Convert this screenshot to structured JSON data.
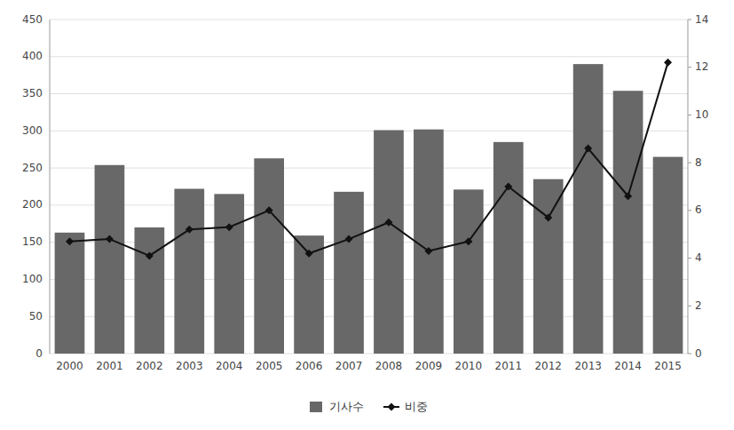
{
  "chart_data": {
    "type": "bar",
    "categories": [
      "2000",
      "2001",
      "2002",
      "2003",
      "2004",
      "2005",
      "2006",
      "2007",
      "2008",
      "2009",
      "2010",
      "2011",
      "2012",
      "2013",
      "2014",
      "2015"
    ],
    "series": [
      {
        "name": "기사수",
        "type": "bar",
        "color": "#686868",
        "values": [
          163,
          254,
          170,
          222,
          215,
          263,
          159,
          218,
          301,
          302,
          221,
          285,
          235,
          390,
          354,
          265
        ]
      },
      {
        "name": "비중",
        "type": "line",
        "color": "#111111",
        "marker": "diamond",
        "axis": "y2",
        "values": [
          4.7,
          4.8,
          4.1,
          5.2,
          5.3,
          6.0,
          4.2,
          4.8,
          5.5,
          4.3,
          4.7,
          7.0,
          5.7,
          8.6,
          6.6,
          12.2
        ]
      }
    ],
    "ylim": [
      0,
      450
    ],
    "yticks": [
      0,
      50,
      100,
      150,
      200,
      250,
      300,
      350,
      400,
      450
    ],
    "y2lim": [
      0,
      14
    ],
    "y2ticks": [
      0,
      2,
      4,
      6,
      8,
      10,
      12,
      14
    ],
    "grid": true,
    "legend": "bottom"
  }
}
